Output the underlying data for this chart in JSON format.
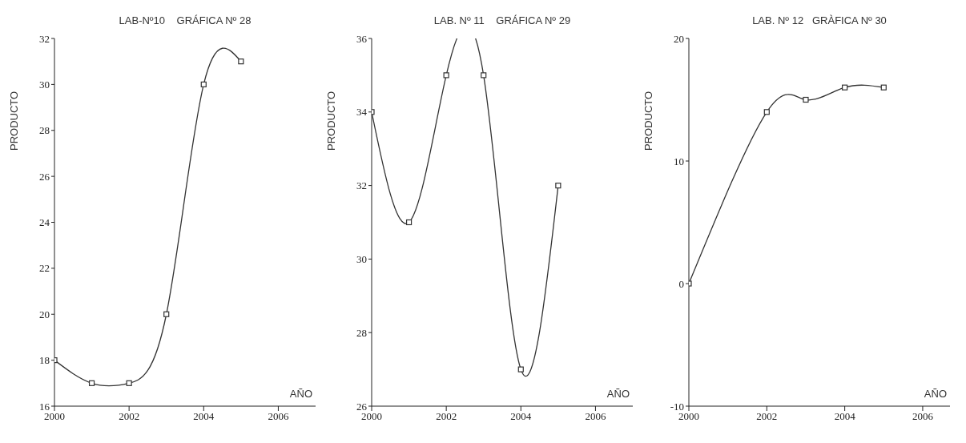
{
  "chart_data": [
    {
      "type": "line",
      "title": "LAB-Nº10    GRÁFICA Nº 28",
      "xlabel": "AÑO",
      "ylabel": "PRODUCTO",
      "marker": "square",
      "grid": false,
      "legend": false,
      "series": [
        {
          "color": "#333333",
          "x": [
            2000,
            2001,
            2002,
            2003,
            2004,
            2005
          ],
          "values": [
            18,
            17,
            17,
            20,
            30,
            31
          ]
        }
      ],
      "xlim": [
        2000,
        2007
      ],
      "xticks": [
        2000,
        2002,
        2004,
        2006
      ],
      "ylim": [
        16,
        32
      ],
      "yticks": [
        16,
        18,
        20,
        22,
        24,
        26,
        28,
        30,
        32
      ]
    },
    {
      "type": "line",
      "title": "LAB. Nº 11    GRÁFICA Nº 29",
      "xlabel": "AÑO",
      "ylabel": "PRODUCTO",
      "marker": "square",
      "grid": false,
      "legend": false,
      "series": [
        {
          "color": "#333333",
          "x": [
            2000,
            2001,
            2002,
            2003,
            2004,
            2005
          ],
          "values": [
            34,
            31,
            35,
            35,
            27,
            32
          ]
        }
      ],
      "xlim": [
        2000,
        2007
      ],
      "xticks": [
        2000,
        2002,
        2004,
        2006
      ],
      "ylim": [
        26,
        36
      ],
      "yticks": [
        26,
        28,
        30,
        32,
        34,
        36
      ]
    },
    {
      "type": "line",
      "title": "LAB. Nº 12   GRÀFICA Nº 30",
      "xlabel": "AÑO",
      "ylabel": "PRODUCTO",
      "marker": "square",
      "grid": false,
      "legend": false,
      "series": [
        {
          "color": "#333333",
          "x": [
            2000,
            2002,
            2003,
            2004,
            2005
          ],
          "values": [
            0,
            14,
            15,
            16,
            16
          ]
        }
      ],
      "xlim": [
        2000,
        2006.7
      ],
      "xticks": [
        2000,
        2002,
        2004,
        2006
      ],
      "ylim": [
        -10,
        20
      ],
      "yticks": [
        -10,
        0,
        10,
        20
      ]
    }
  ]
}
